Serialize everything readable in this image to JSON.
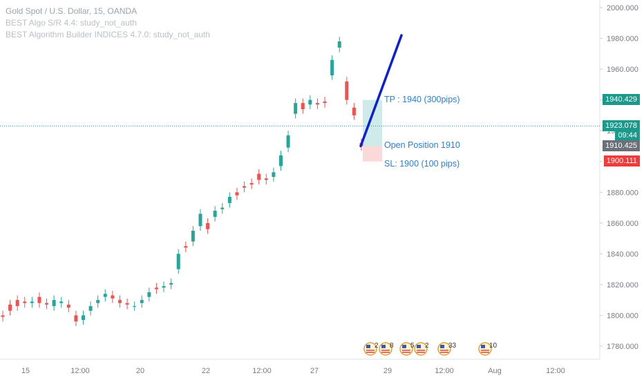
{
  "legend": {
    "title": "Gold Spot / U.S. Dollar, 15, OANDA",
    "line1": "BEST Algo S/R 4.4: study_not_auth",
    "line2": "BEST Algorithm Builder INDICES 4.7.0: study_not_auth"
  },
  "annotations": {
    "tp": "TP : 1940 (300pips)",
    "open": "Open Position 1910",
    "sl": "SL: 1900 (100 pips)"
  },
  "price_labels": [
    {
      "text": "1940.429",
      "value": 1940.429,
      "color": "#1b998b"
    },
    {
      "text": "1923.078",
      "value": 1923.078,
      "color": "#1b998b"
    },
    {
      "text": "09:44",
      "value": 1916.8,
      "color": "#1b998b"
    },
    {
      "text": "1910.425",
      "value": 1910.425,
      "color": "#6b6f78"
    },
    {
      "text": "1900.111",
      "value": 1900.111,
      "color": "#ee3b3b"
    }
  ],
  "event_badges": [
    {
      "x": "28 06:00",
      "count": "2"
    },
    {
      "x": "28 10:00",
      "count": "8"
    },
    {
      "x": "29 06:00",
      "count": "5"
    },
    {
      "x": "29 10:00",
      "count": "2"
    },
    {
      "x": "30 06:00",
      "count": "33"
    },
    {
      "x": "31 06:00",
      "count": "10"
    }
  ],
  "chart_data": {
    "type": "candlestick",
    "ylim": [
      1772,
      2004
    ],
    "y_ticks": [
      1780,
      1800,
      1820,
      1840,
      1860,
      1880,
      1900,
      1920,
      1940,
      1960,
      1980,
      2000
    ],
    "y_tick_labels": [
      "1780.000",
      "1800.000",
      "1820.000",
      "1840.000",
      "1860.000",
      "1880.000",
      "1900.000",
      "1920.000",
      "1940.000",
      "1960.000",
      "1980.000",
      "2000.000"
    ],
    "x_tick_labels": [
      "15",
      "12:00",
      "20",
      "22",
      "12:00",
      "27",
      "29",
      "12:00",
      "Aug",
      "12:00"
    ],
    "current_price": 1923.078,
    "series": [
      {
        "points": [
          [
            1800,
            1799
          ],
          [
            1807,
            1803
          ],
          [
            1810,
            1806
          ],
          [
            1809,
            1808
          ],
          [
            1808,
            1809
          ],
          [
            1812,
            1808
          ],
          [
            1808,
            1807
          ],
          [
            1806,
            1810
          ],
          [
            1808,
            1809
          ],
          [
            1807,
            1805
          ],
          [
            1800,
            1796
          ],
          [
            1797,
            1800
          ],
          [
            1803,
            1806
          ],
          [
            1808,
            1810
          ],
          [
            1812,
            1814
          ],
          [
            1813,
            1811
          ],
          [
            1810,
            1808
          ],
          [
            1808,
            1807
          ],
          [
            1806,
            1806
          ],
          [
            1808,
            1810
          ],
          [
            1812,
            1815
          ],
          [
            1818,
            1817
          ],
          [
            1818,
            1819
          ],
          [
            1820,
            1821
          ],
          [
            1830,
            1840
          ],
          [
            1845,
            1844
          ],
          [
            1848,
            1855
          ],
          [
            1858,
            1866
          ],
          [
            1860,
            1856
          ],
          [
            1864,
            1868
          ],
          [
            1869,
            1870
          ],
          [
            1873,
            1877
          ],
          [
            1880,
            1878
          ],
          [
            1884,
            1883
          ],
          [
            1886,
            1885
          ],
          [
            1892,
            1888
          ],
          [
            1889,
            1888
          ],
          [
            1890,
            1893
          ],
          [
            1897,
            1904
          ],
          [
            1909,
            1917
          ],
          [
            1931,
            1938
          ],
          [
            1938,
            1934
          ],
          [
            1937,
            1940
          ],
          [
            1938,
            1937
          ],
          [
            1939,
            1938
          ],
          [
            1956,
            1966
          ],
          [
            1974,
            1978
          ],
          [
            1952,
            1940
          ],
          [
            1935,
            1930
          ],
          [
            1912,
            1910
          ]
        ]
      }
    ],
    "position": {
      "entry": 1910,
      "take_profit": 1940,
      "stop_loss": 1900,
      "take_profit_pips": 300,
      "stop_loss_pips": 100
    },
    "trend_line": {
      "from": 1910,
      "to": 1982
    }
  }
}
